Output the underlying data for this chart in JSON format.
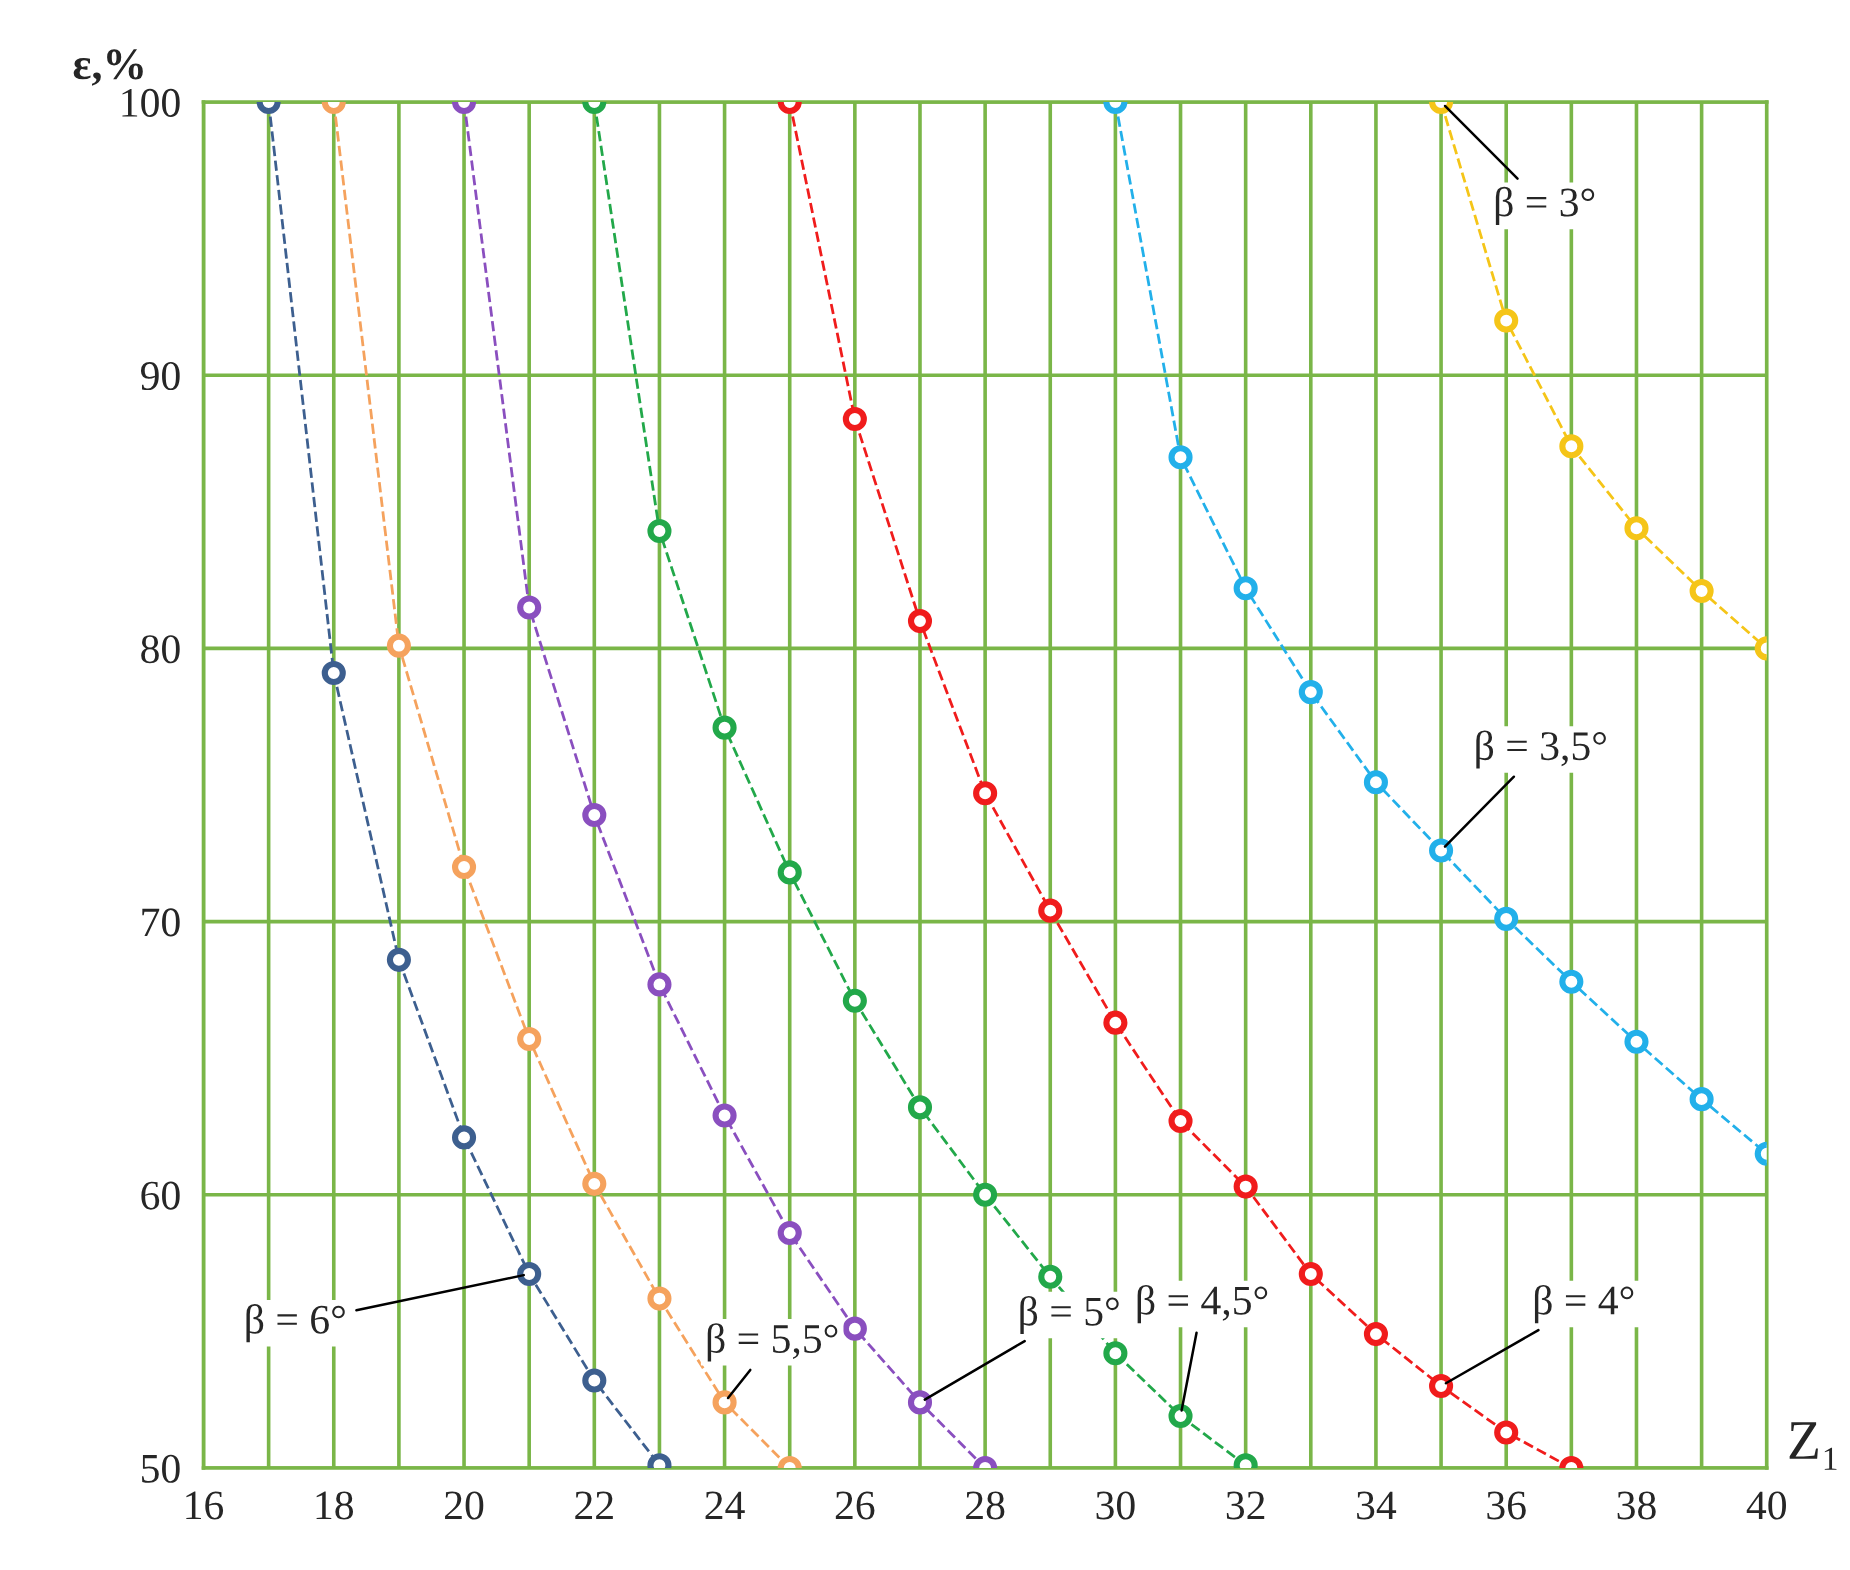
{
  "chart_data": {
    "type": "line",
    "xlabel": "Z₁",
    "ylabel": "ε,%",
    "xlim": [
      16,
      40
    ],
    "ylim": [
      50,
      100
    ],
    "xticks": [
      16,
      {
        "value": 17,
        "label": null
      },
      18,
      {
        "value": 19,
        "label": null
      },
      20,
      {
        "value": 21,
        "label": null
      },
      22,
      {
        "value": 23,
        "label": null
      },
      24,
      {
        "value": 25,
        "label": null
      },
      26,
      {
        "value": 27,
        "label": null
      },
      28,
      {
        "value": 29,
        "label": null
      },
      30,
      {
        "value": 31,
        "label": null
      },
      32,
      {
        "value": 33,
        "label": null
      },
      34,
      {
        "value": 35,
        "label": null
      },
      36,
      {
        "value": 37,
        "label": null
      },
      38,
      {
        "value": 39,
        "label": null
      },
      40
    ],
    "yticks": [
      50,
      60,
      70,
      80,
      90,
      100
    ],
    "grid": true,
    "legend": false,
    "marker": "circle",
    "line_style": "dashed",
    "series": [
      {
        "name": "β = 6°",
        "color": "#3d5f8f",
        "x": [
          17,
          18,
          19,
          20,
          21,
          22,
          23
        ],
        "values": [
          100,
          79.1,
          68.6,
          62.1,
          57.1,
          53.2,
          50.1
        ]
      },
      {
        "name": "β = 5,5°",
        "color": "#f5a25d",
        "x": [
          18,
          19,
          20,
          21,
          22,
          23,
          24,
          25
        ],
        "values": [
          100,
          80.1,
          72.0,
          65.7,
          60.4,
          56.2,
          52.4,
          50
        ]
      },
      {
        "name": "β = 5°",
        "color": "#8a4fbf",
        "x": [
          20,
          21,
          22,
          23,
          24,
          25,
          26,
          27,
          28
        ],
        "values": [
          100,
          81.5,
          73.9,
          67.7,
          62.9,
          58.6,
          55.1,
          52.4,
          50
        ]
      },
      {
        "name": "β = 4,5°",
        "color": "#22a84a",
        "x": [
          22,
          23,
          24,
          25,
          26,
          27,
          28,
          29,
          30,
          31,
          32
        ],
        "values": [
          100,
          84.3,
          77.1,
          71.8,
          67.1,
          63.2,
          60.0,
          57.0,
          54.2,
          51.9,
          50.1
        ]
      },
      {
        "name": "β = 4°",
        "color": "#f01c1c",
        "x": [
          25,
          26,
          27,
          28,
          29,
          30,
          31,
          32,
          33,
          34,
          35,
          36,
          37
        ],
        "values": [
          100,
          88.4,
          81.0,
          74.7,
          70.4,
          66.3,
          62.7,
          60.3,
          57.1,
          54.9,
          53.0,
          51.3,
          50
        ]
      },
      {
        "name": "β = 3,5°",
        "color": "#22b0ea",
        "x": [
          30,
          31,
          32,
          33,
          34,
          35,
          36,
          37,
          38,
          39,
          40
        ],
        "values": [
          100,
          87.0,
          82.2,
          78.4,
          75.1,
          72.6,
          70.1,
          67.8,
          65.6,
          63.5,
          61.5
        ]
      },
      {
        "name": "β = 3°",
        "color": "#f5c518",
        "x": [
          35,
          36,
          37,
          38,
          39,
          40
        ],
        "values": [
          100,
          92.0,
          87.4,
          84.4,
          82.1,
          80.0
        ]
      }
    ]
  }
}
